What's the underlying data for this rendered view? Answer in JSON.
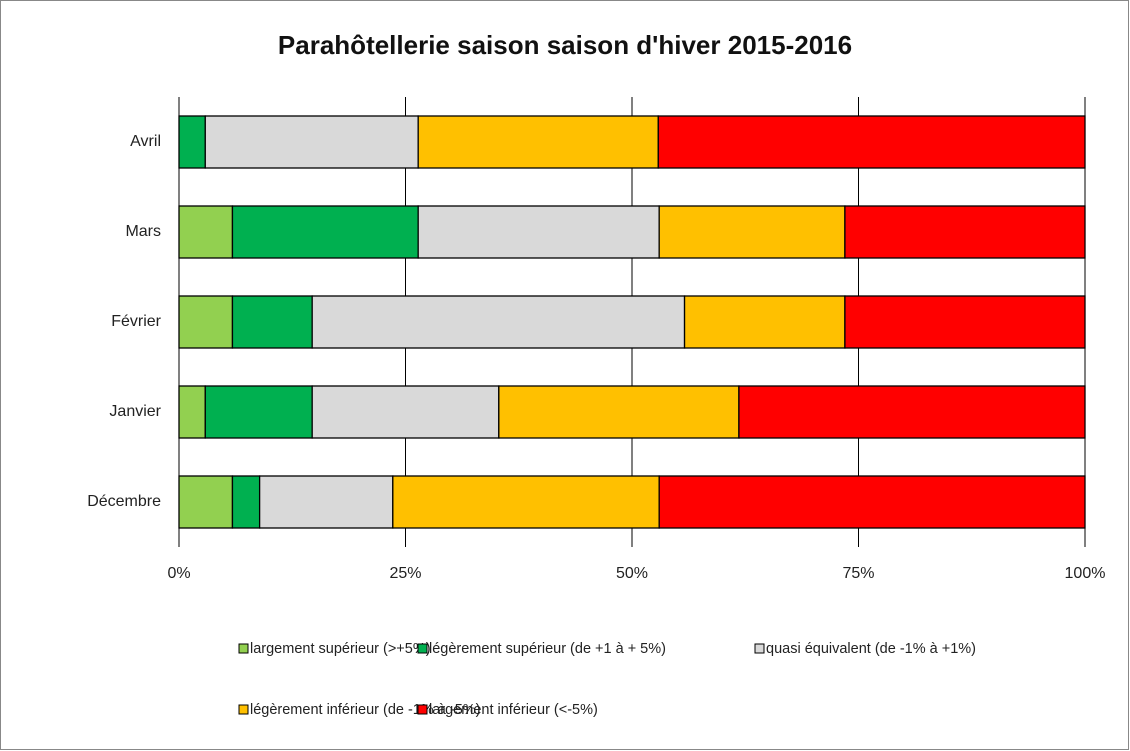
{
  "chart_data": {
    "type": "stacked_barh",
    "title": "Parahôtellerie saison saison d'hiver 2015-2016",
    "categories": [
      "Avril",
      "Mars",
      "Février",
      "Janvier",
      "Décembre"
    ],
    "series": [
      {
        "name": "largement supérieur (>+5%)",
        "color": "#92d050",
        "values": [
          0,
          5.9,
          5.9,
          2.9,
          5.9
        ]
      },
      {
        "name": "légèrement supérieur (de +1 à + 5%)",
        "color": "#00b050",
        "values": [
          2.9,
          20.5,
          8.8,
          11.8,
          3.0
        ]
      },
      {
        "name": "quasi équivalent (de -1% à +1%)",
        "color": "#d9d9d9",
        "values": [
          23.5,
          26.6,
          41.1,
          20.6,
          14.7
        ]
      },
      {
        "name": "légèrement inférieur (de -1% à -5%)",
        "color": "#ffc000",
        "values": [
          26.5,
          20.5,
          17.7,
          26.5,
          29.4
        ]
      },
      {
        "name": "largement inférieur (<-5%)",
        "color": "#ff0000",
        "values": [
          47.1,
          26.5,
          26.5,
          38.2,
          47.0
        ]
      }
    ],
    "xlim": [
      0,
      100
    ],
    "xticks": [
      {
        "value": 0,
        "label": "0%"
      },
      {
        "value": 25,
        "label": "25%"
      },
      {
        "value": 50,
        "label": "50%"
      },
      {
        "value": 75,
        "label": "75%"
      },
      {
        "value": 100,
        "label": "100%"
      }
    ],
    "grid": true
  }
}
